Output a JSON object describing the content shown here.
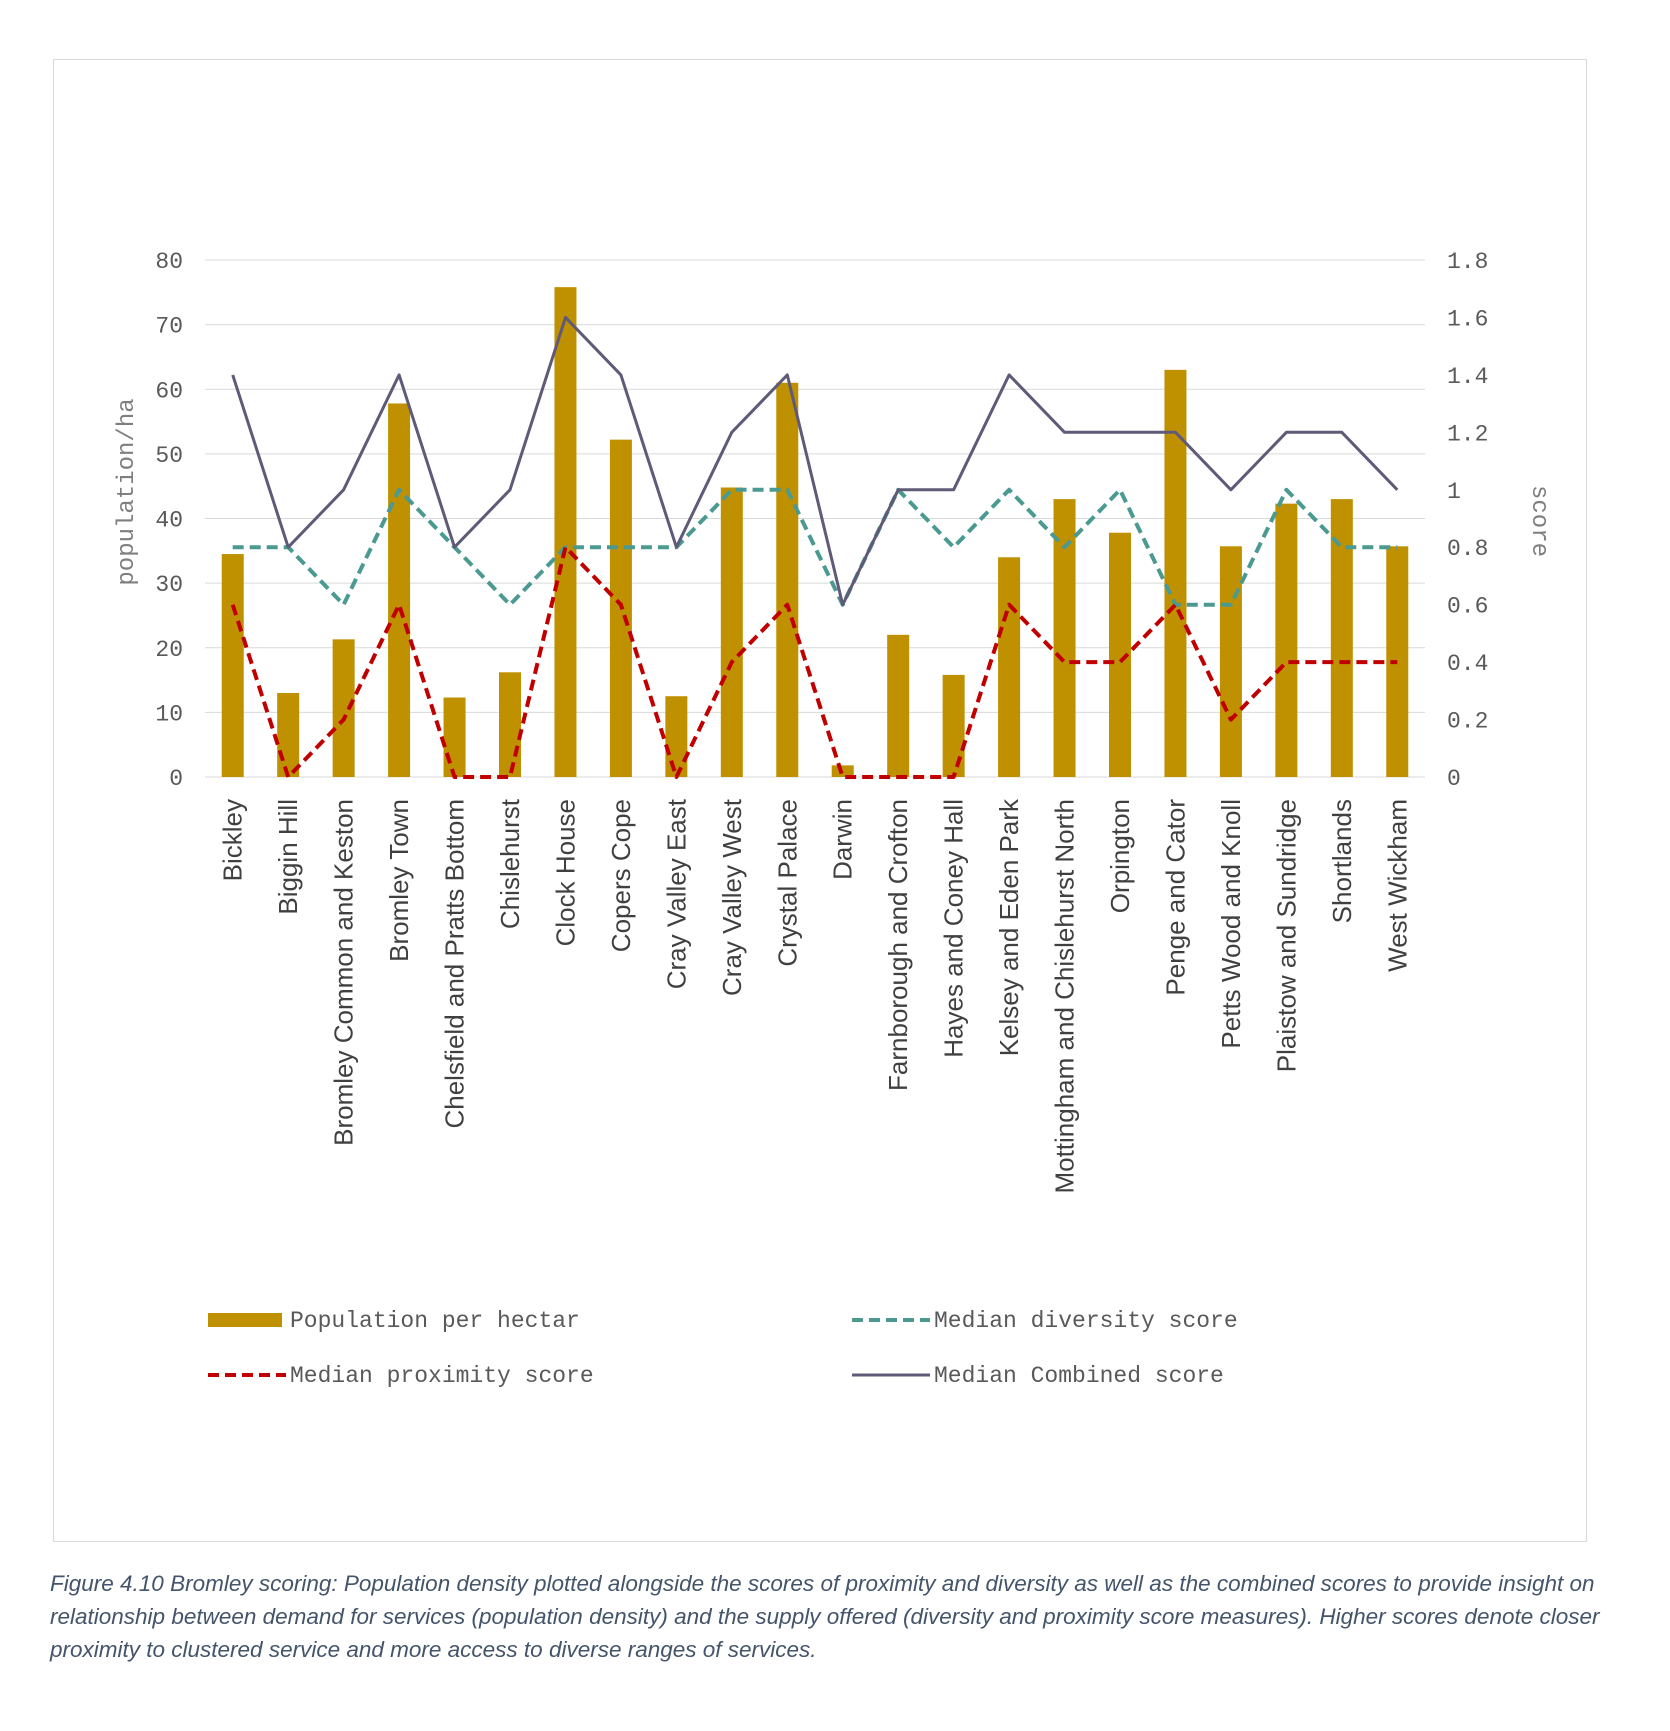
{
  "chart_data": {
    "type": "bar",
    "categories": [
      "Bickley",
      "Biggin Hill",
      "Bromley Common and Keston",
      "Bromley Town",
      "Chelsfield and Pratts Bottom",
      "Chislehurst",
      "Clock House",
      "Copers Cope",
      "Cray Valley East",
      "Cray Valley West",
      "Crystal Palace",
      "Darwin",
      "Farnborough and Crofton",
      "Hayes and Coney Hall",
      "Kelsey and Eden Park",
      "Mottingham and Chislehurst North",
      "Orpington",
      "Penge and Cator",
      "Petts Wood and Knoll",
      "Plaistow and Sundridge",
      "Shortlands",
      "West Wickham"
    ],
    "ylabel": "population/ha",
    "y2label": "score",
    "ylim": [
      0,
      80
    ],
    "y2lim": [
      0,
      1.8
    ],
    "yticks": [
      "0",
      "10",
      "20",
      "30",
      "40",
      "50",
      "60",
      "70",
      "80"
    ],
    "y2ticks": [
      "0",
      "0.2",
      "0.4",
      "0.6",
      "0.8",
      "1",
      "1.2",
      "1.4",
      "1.6",
      "1.8"
    ],
    "grid": true,
    "legend_position": "bottom",
    "series": [
      {
        "name": "Population per hectar",
        "type": "bar",
        "axis": "left",
        "color": "#bf9000",
        "values": [
          34.5,
          13,
          21.3,
          57.8,
          12.3,
          16.2,
          75.8,
          52.2,
          12.5,
          44.8,
          61,
          1.8,
          22,
          15.8,
          34,
          43,
          37.8,
          63,
          35.7,
          42.3,
          43,
          35.7
        ]
      },
      {
        "name": "Median diversity score",
        "type": "line",
        "axis": "right",
        "style": "dashed",
        "color": "#4a9a92",
        "values": [
          0.8,
          0.8,
          0.6,
          1.0,
          0.8,
          0.6,
          0.8,
          0.8,
          0.8,
          1.0,
          1.0,
          0.6,
          1.0,
          0.8,
          1.0,
          0.8,
          1.0,
          0.6,
          0.6,
          1.0,
          0.8,
          0.8
        ]
      },
      {
        "name": "Median proximity score",
        "type": "line",
        "axis": "right",
        "style": "dashed",
        "color": "#c00000",
        "values": [
          0.6,
          0,
          0.2,
          0.6,
          0,
          0,
          0.8,
          0.6,
          0,
          0.4,
          0.6,
          0,
          0,
          0,
          0.6,
          0.4,
          0.4,
          0.6,
          0.2,
          0.4,
          0.4,
          0.4
        ]
      },
      {
        "name": "Median Combined score",
        "type": "line",
        "axis": "right",
        "style": "solid",
        "color": "#5f5a78",
        "values": [
          1.4,
          0.8,
          1.0,
          1.4,
          0.8,
          1.0,
          1.6,
          1.4,
          0.8,
          1.2,
          1.4,
          0.6,
          1.0,
          1.0,
          1.4,
          1.2,
          1.2,
          1.2,
          1.0,
          1.2,
          1.2,
          1.0
        ]
      }
    ]
  },
  "caption": "Figure 4.10 Bromley scoring: Population density plotted alongside the scores of proximity and diversity as well as the combined scores to provide insight on relationship between demand for services (population density) and the supply offered  (diversity and proximity score measures).  Higher scores denote closer proximity to clustered service and more access to diverse ranges of services."
}
